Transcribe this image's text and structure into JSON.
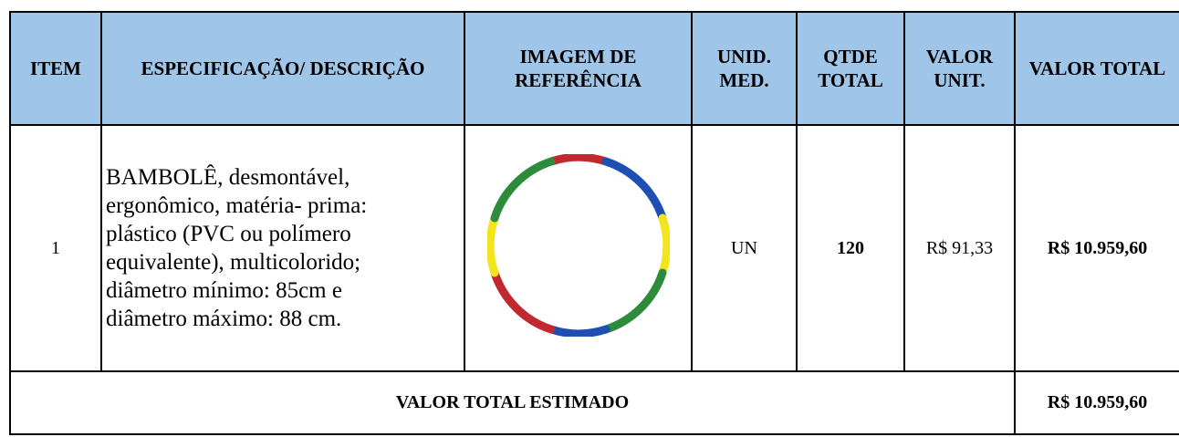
{
  "table": {
    "header": [
      "ITEM",
      "ESPECIFICAÇÃO/ DESCRIÇÃO",
      "IMAGEM DE REFERÊNCIA",
      "UNID. MED.",
      "QTDE TOTAL",
      "VALOR UNIT.",
      "VALOR TOTAL"
    ],
    "rows": [
      {
        "item": "1",
        "description_lines": [
          "BAMBOLÊ, desmontável,",
          "ergonômico, matéria- prima:",
          "plástico (PVC ou polímero",
          "equivalente), multicolorido;",
          "diâmetro mínimo: 85cm e",
          "diâmetro máximo: 88 cm."
        ],
        "unit": "UN",
        "quantity": "120",
        "unit_value": "R$ 91,33",
        "total_value": "R$ 10.959,60"
      }
    ],
    "footer": {
      "label": "VALOR TOTAL ESTIMADO",
      "value": "R$ 10.959,60"
    }
  }
}
